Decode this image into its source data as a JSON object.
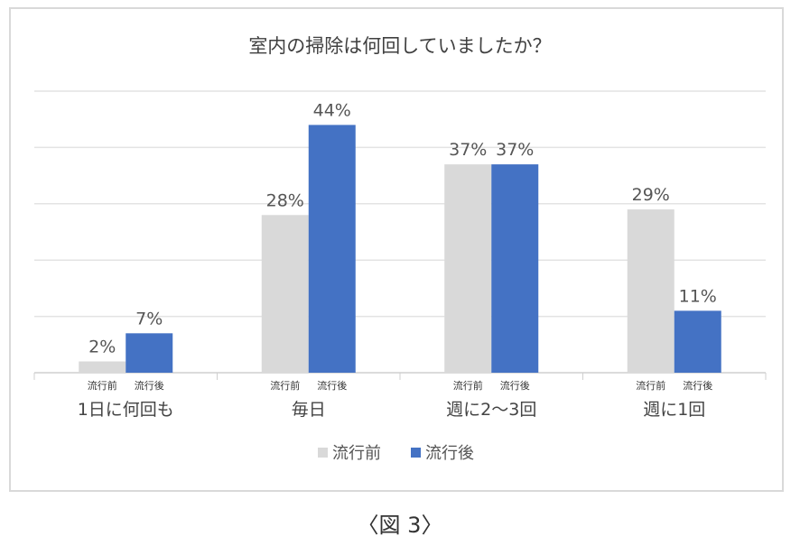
{
  "chart_data": {
    "type": "bar",
    "title": "室内の掃除は何回していましたか？",
    "categories": [
      "1日に何回も",
      "毎日",
      "週に2～3回",
      "週に1回"
    ],
    "sub_labels": [
      "流行前",
      "流行後"
    ],
    "series": [
      {
        "name": "流行前",
        "color": "#d9d9d9",
        "values": [
          2,
          28,
          37,
          29
        ],
        "labels": [
          "2%",
          "28%",
          "37%",
          "29%"
        ]
      },
      {
        "name": "流行後",
        "color": "#4472c4",
        "values": [
          7,
          44,
          37,
          11
        ],
        "labels": [
          "7%",
          "44%",
          "37%",
          "11%"
        ]
      }
    ],
    "ylim": [
      0,
      50
    ],
    "yticks": [
      0,
      10,
      20,
      30,
      40,
      50
    ],
    "grid": true,
    "legend": "bottom-center",
    "xlabel": "",
    "ylabel": ""
  },
  "caption": "〈図 3〉"
}
